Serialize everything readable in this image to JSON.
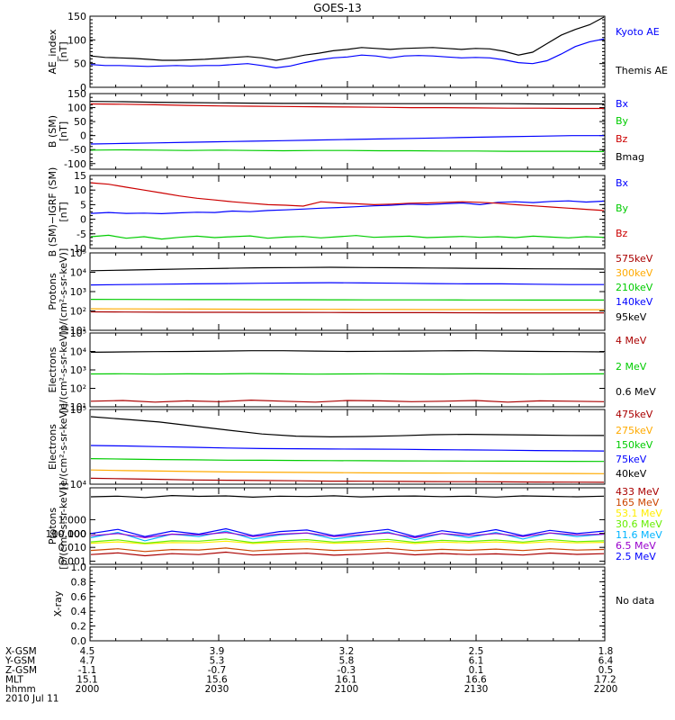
{
  "title": "GOES-13",
  "colors": {
    "black": "#000000",
    "blue": "#0000ff",
    "green": "#00cc00",
    "red": "#cc0000",
    "orange": "#ffaa00",
    "darkred": "#aa0000",
    "cyan": "#00b4ff",
    "purple": "#9900cc",
    "yellow": "#ffee00",
    "lime": "#66ee00"
  },
  "chart_data": [
    {
      "type": "line",
      "ylabel": "AE_index\n[nT]",
      "ylim": [
        0,
        150
      ],
      "yticks": [
        "0",
        "50",
        "100",
        "150"
      ],
      "series": [
        {
          "name": "Kyoto AE",
          "color": "#0000ff",
          "values": [
            48,
            46,
            46,
            45,
            44,
            45,
            46,
            45,
            46,
            46,
            48,
            50,
            46,
            41,
            45,
            52,
            58,
            62,
            64,
            68,
            66,
            62,
            66,
            67,
            66,
            64,
            62,
            63,
            62,
            58,
            52,
            50,
            56,
            70,
            86,
            96,
            102
          ]
        },
        {
          "name": "Themis AE",
          "color": "#000000",
          "values": [
            66,
            63,
            62,
            61,
            59,
            57,
            57,
            58,
            59,
            61,
            63,
            65,
            62,
            57,
            62,
            68,
            72,
            77,
            80,
            84,
            82,
            80,
            82,
            83,
            84,
            82,
            80,
            82,
            81,
            76,
            68,
            74,
            92,
            110,
            122,
            132,
            150
          ]
        }
      ]
    },
    {
      "type": "line",
      "ylabel": "B (SM)\n[nT]",
      "ylim": [
        -120,
        150
      ],
      "yticks": [
        "-100",
        "-50",
        "0",
        "50",
        "100",
        "150"
      ],
      "series": [
        {
          "name": "Bx",
          "color": "#0000ff",
          "values": [
            -30,
            -28,
            -26,
            -24,
            -22,
            -20,
            -18,
            -16,
            -14,
            -12,
            -10,
            -8,
            -6,
            -4,
            -2,
            0,
            0
          ]
        },
        {
          "name": "By",
          "color": "#00cc00",
          "values": [
            -52,
            -51,
            -52,
            -53,
            -52,
            -53,
            -54,
            -53,
            -53,
            -54,
            -54,
            -55,
            -55,
            -56,
            -56,
            -56,
            -57
          ]
        },
        {
          "name": "Bz",
          "color": "#cc0000",
          "values": [
            113,
            112,
            110,
            108,
            106,
            105,
            104,
            103,
            102,
            101,
            100,
            100,
            99,
            98,
            98,
            97,
            97
          ]
        },
        {
          "name": "Bmag",
          "color": "#000000",
          "values": [
            122,
            121,
            119,
            118,
            117,
            116,
            115,
            115,
            114,
            114,
            114,
            114,
            114,
            114,
            113,
            113,
            113
          ]
        }
      ]
    },
    {
      "type": "line",
      "ylabel": "B (SM)−IGRF (SM)\n[nT]",
      "ylim": [
        -10,
        15
      ],
      "yticks": [
        "-10",
        "-5",
        "0",
        "5",
        "10",
        "15"
      ],
      "series": [
        {
          "name": "Bx",
          "color": "#0000ff",
          "values": [
            2,
            2.3,
            2.0,
            2.1,
            1.9,
            2.2,
            2.4,
            2.3,
            2.8,
            2.6,
            3.0,
            3.2,
            3.5,
            3.8,
            4.0,
            4.3,
            4.6,
            4.8,
            5.2,
            5.0,
            5.3,
            5.6,
            5.0,
            5.8,
            6.0,
            5.7,
            6.1,
            6.3,
            5.9,
            6.2
          ]
        },
        {
          "name": "By",
          "color": "#00cc00",
          "values": [
            -6,
            -5.5,
            -6.5,
            -6,
            -6.8,
            -6.2,
            -5.8,
            -6.3,
            -6,
            -5.7,
            -6.5,
            -6.1,
            -5.9,
            -6.4,
            -6.0,
            -5.6,
            -6.2,
            -6.0,
            -5.8,
            -6.3,
            -6.1,
            -5.9,
            -6.2,
            -6.0,
            -6.3,
            -5.8,
            -6.1,
            -6.4,
            -6.0,
            -6.2
          ]
        },
        {
          "name": "Bz",
          "color": "#cc0000",
          "values": [
            12.5,
            12,
            11,
            10,
            9,
            8,
            7.2,
            6.6,
            6.0,
            5.5,
            5.0,
            4.8,
            4.5,
            6.0,
            5.6,
            5.3,
            5.0,
            5.2,
            5.5,
            5.6,
            5.8,
            6.0,
            5.8,
            5.5,
            5.0,
            4.6,
            4.2,
            3.8,
            3.4,
            3.0
          ]
        }
      ]
    },
    {
      "type": "line",
      "ylabel": "Protons\n[p/(cm²-s-sr-keV)]",
      "yscale": "log",
      "ylim": [
        10,
        100000
      ],
      "yticks": [
        "10¹",
        "10²",
        "10³",
        "10⁴",
        "10⁵"
      ],
      "series": [
        {
          "name": "575keV",
          "color": "#aa0000",
          "values": [
            90,
            88,
            86,
            85,
            85,
            84,
            84,
            83,
            82,
            82,
            82,
            81,
            80,
            80,
            80,
            80
          ]
        },
        {
          "name": "300keV",
          "color": "#ffaa00",
          "values": [
            130,
            128,
            126,
            125,
            124,
            123,
            122,
            121,
            120,
            119,
            118,
            118,
            117,
            116,
            116,
            116
          ]
        },
        {
          "name": "210keV",
          "color": "#00cc00",
          "values": [
            400,
            395,
            390,
            385,
            385,
            380,
            380,
            378,
            375,
            374,
            372,
            370,
            368,
            365,
            365,
            365
          ]
        },
        {
          "name": "140keV",
          "color": "#0000ff",
          "values": [
            2200,
            2300,
            2400,
            2500,
            2600,
            2700,
            2800,
            2900,
            2800,
            2700,
            2600,
            2500,
            2500,
            2400,
            2300,
            2300
          ]
        },
        {
          "name": "95keV",
          "color": "#000000",
          "values": [
            12000,
            13000,
            14000,
            15000,
            16000,
            17000,
            17500,
            18000,
            17500,
            17000,
            16500,
            16000,
            15500,
            15000,
            14800,
            14500
          ]
        }
      ]
    },
    {
      "type": "line",
      "ylabel": "Electrons\n[e/(cm²-s-sr-keV)]",
      "yscale": "log",
      "ylim": [
        10,
        100000
      ],
      "yticks": [
        "10¹",
        "10²",
        "10³",
        "10⁴",
        "10⁵"
      ],
      "series": [
        {
          "name": "4 MeV",
          "color": "#aa0000",
          "values": [
            20,
            22,
            18,
            21,
            19,
            23,
            20,
            18,
            22,
            21,
            19,
            20,
            22,
            18,
            21,
            20,
            19
          ]
        },
        {
          "name": "2 MeV",
          "color": "#00cc00",
          "values": [
            600,
            620,
            590,
            610,
            600,
            630,
            610,
            590,
            600,
            620,
            605,
            595,
            610,
            600,
            590,
            600,
            610
          ]
        },
        {
          "name": "0.6 MeV",
          "color": "#000000",
          "values": [
            9000,
            9500,
            9800,
            10000,
            10500,
            11000,
            11000,
            10500,
            10000,
            10200,
            10500,
            10800,
            11000,
            10500,
            10000,
            9800,
            9500
          ]
        }
      ]
    },
    {
      "type": "line",
      "ylabel": "Electrons\n[e/(cm²-s-sr-keV)]",
      "yscale": "log",
      "ylim": [
        10000,
        100000
      ],
      "yticks": [
        "10⁴",
        "10⁵"
      ],
      "series": [
        {
          "name": "475keV",
          "color": "#aa0000",
          "values": [
            12000,
            11800,
            11600,
            11400,
            11300,
            11200,
            11100,
            11000,
            10950,
            10900,
            10850,
            10800,
            10750,
            10700,
            10650,
            10600
          ]
        },
        {
          "name": "275keV",
          "color": "#ffaa00",
          "values": [
            15500,
            15200,
            15000,
            14800,
            14600,
            14500,
            14400,
            14300,
            14200,
            14150,
            14100,
            14050,
            14000,
            13950,
            13900,
            13850
          ]
        },
        {
          "name": "150keV",
          "color": "#00cc00",
          "values": [
            22000,
            21700,
            21400,
            21200,
            21000,
            20900,
            20800,
            20700,
            20600,
            20500,
            20450,
            20400,
            20350,
            20300,
            20250,
            20200
          ]
        },
        {
          "name": "75keV",
          "color": "#0000ff",
          "values": [
            33000,
            32500,
            31800,
            31200,
            30500,
            30000,
            29800,
            29600,
            29500,
            29300,
            29000,
            28800,
            28500,
            28200,
            28000,
            27800
          ]
        },
        {
          "name": "40keV",
          "color": "#000000",
          "values": [
            80000,
            74000,
            68000,
            60000,
            53000,
            47000,
            44000,
            43000,
            43500,
            44500,
            46000,
            46500,
            46000,
            45500,
            45000,
            44800
          ]
        }
      ]
    },
    {
      "type": "line",
      "ylabel": "Protons\n[p/(cm²-s-sr-keV)]",
      "yscale": "log",
      "ylim": [
        0.0006,
        200
      ],
      "yticks": [
        "0.001",
        "0.010",
        "0.100",
        "1.000",
        "10.000",
        "100.000"
      ],
      "series": [
        {
          "name": "433 MeV",
          "color": "#aa0000",
          "values": [
            0.003,
            0.004,
            0.0025,
            0.0035,
            0.003,
            0.0045,
            0.0028,
            0.0033,
            0.0038,
            0.0027,
            0.0032,
            0.0041,
            0.0029,
            0.0036,
            0.003,
            0.0034,
            0.0028,
            0.0039,
            0.0031,
            0.0035
          ]
        },
        {
          "name": "165 MeV",
          "color": "#cc4400",
          "values": [
            0.006,
            0.008,
            0.005,
            0.007,
            0.0065,
            0.009,
            0.0055,
            0.007,
            0.008,
            0.006,
            0.0068,
            0.0085,
            0.0058,
            0.0072,
            0.0062,
            0.0075,
            0.0059,
            0.008,
            0.0064,
            0.0071
          ]
        },
        {
          "name": "53.1 MeV",
          "color": "#ffee00",
          "values": [
            0.02,
            0.025,
            0.018,
            0.022,
            0.021,
            0.028,
            0.019,
            0.023,
            0.026,
            0.02,
            0.022,
            0.027,
            0.019,
            0.024,
            0.021,
            0.025,
            0.02,
            0.026,
            0.021,
            0.023
          ]
        },
        {
          "name": "30.6 MeV",
          "color": "#66ee00",
          "values": [
            0.025,
            0.035,
            0.02,
            0.03,
            0.028,
            0.04,
            0.022,
            0.03,
            0.036,
            0.024,
            0.029,
            0.038,
            0.023,
            0.032,
            0.027,
            0.034,
            0.024,
            0.037,
            0.026,
            0.03
          ]
        },
        {
          "name": "11.6 MeV",
          "color": "#00b4ff",
          "values": [
            0.05,
            0.12,
            0.03,
            0.09,
            0.06,
            0.15,
            0.04,
            0.08,
            0.11,
            0.04,
            0.07,
            0.13,
            0.035,
            0.1,
            0.05,
            0.12,
            0.04,
            0.11,
            0.06,
            0.09
          ]
        },
        {
          "name": "6.5 MeV",
          "color": "#9900cc",
          "values": [
            0.07,
            0.1,
            0.05,
            0.09,
            0.08,
            0.12,
            0.06,
            0.09,
            0.11,
            0.06,
            0.08,
            0.11,
            0.05,
            0.1,
            0.07,
            0.1,
            0.06,
            0.11,
            0.08,
            0.09
          ]
        },
        {
          "name": "2.5 MeV",
          "color": "#0000ff",
          "values": [
            0.1,
            0.2,
            0.06,
            0.15,
            0.09,
            0.22,
            0.07,
            0.14,
            0.18,
            0.07,
            0.12,
            0.2,
            0.06,
            0.16,
            0.09,
            0.19,
            0.07,
            0.17,
            0.1,
            0.15
          ]
        },
        {
          "name": "",
          "color": "#000000",
          "values": [
            45,
            50,
            40,
            55,
            48,
            52,
            42,
            50,
            47,
            53,
            44,
            49,
            51,
            46,
            50,
            43,
            52,
            48,
            45,
            50
          ]
        }
      ]
    },
    {
      "type": "line",
      "ylabel": "X-ray",
      "ylim": [
        0,
        1
      ],
      "yticks": [
        "0.0",
        "0.2",
        "0.4",
        "0.6",
        "0.8",
        "1.0"
      ],
      "nodata": "No data",
      "series": []
    }
  ],
  "xaxis": {
    "rows": [
      {
        "label": "X-GSM",
        "values": [
          "4.5",
          "3.9",
          "3.2",
          "2.5",
          "1.8"
        ]
      },
      {
        "label": "Y-GSM",
        "values": [
          "4.7",
          "5.3",
          "5.8",
          "6.1",
          "6.4"
        ]
      },
      {
        "label": "Z-GSM",
        "values": [
          "-1.1",
          "-0.7",
          "-0.3",
          "0.1",
          "0.5"
        ]
      },
      {
        "label": "MLT",
        "values": [
          "15.1",
          "15.6",
          "16.1",
          "16.6",
          "17.2"
        ]
      },
      {
        "label": "hhmm",
        "values": [
          "2000",
          "2030",
          "2100",
          "2130",
          "2200"
        ]
      }
    ],
    "date": "2010 Jul 11"
  }
}
